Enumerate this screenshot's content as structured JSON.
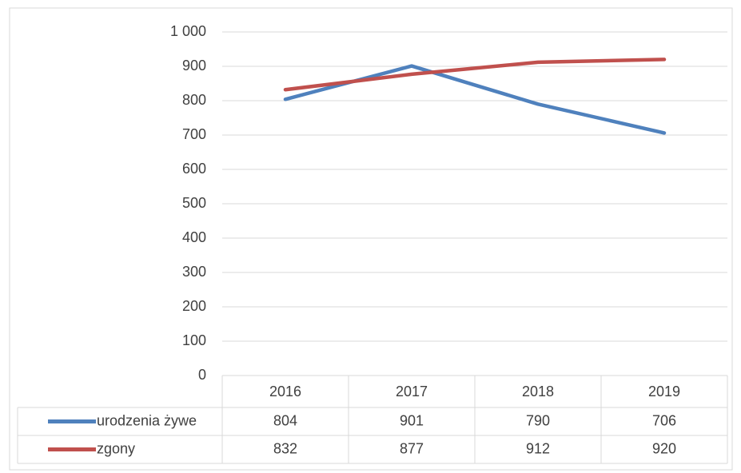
{
  "chart_data": {
    "type": "line",
    "categories": [
      "2016",
      "2017",
      "2018",
      "2019"
    ],
    "series": [
      {
        "name": "urodzenia żywe",
        "color": "#4f81bd",
        "values": [
          804,
          901,
          790,
          706
        ]
      },
      {
        "name": "zgony",
        "color": "#c0504d",
        "values": [
          832,
          877,
          912,
          920
        ]
      }
    ],
    "ylim": [
      0,
      1000
    ],
    "yticks": [
      0,
      100,
      200,
      300,
      400,
      500,
      600,
      700,
      800,
      900,
      {
        "value": 1000,
        "label": "1 000"
      }
    ],
    "grid": true
  }
}
